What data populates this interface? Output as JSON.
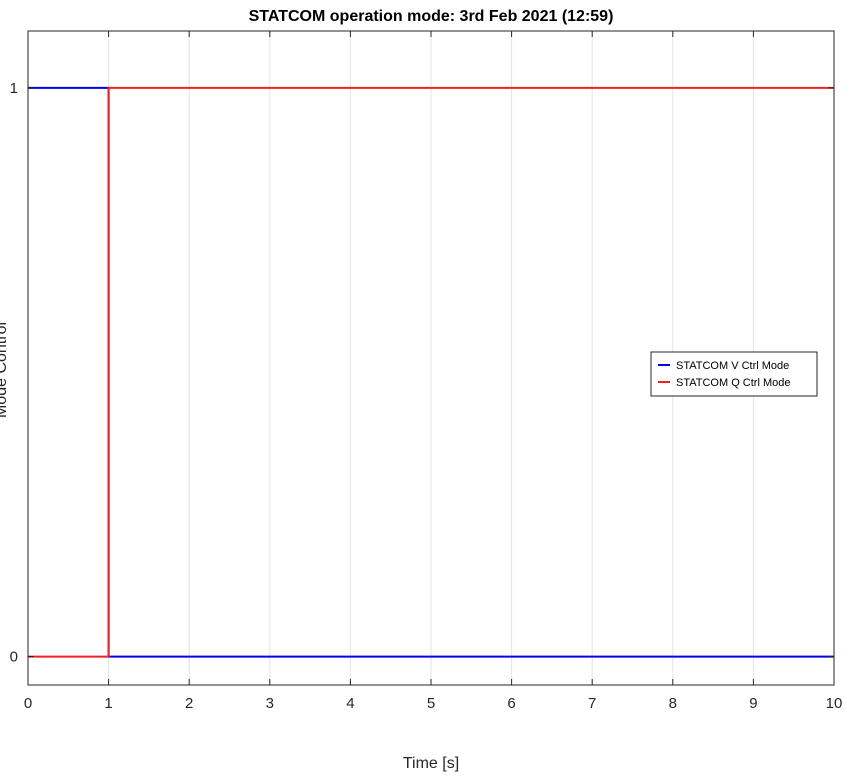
{
  "chart_data": {
    "type": "line",
    "title": "STATCOM operation mode: 3rd Feb 2021 (12:59)",
    "xlabel": "Time [s]",
    "ylabel": "Mode Control",
    "xlim": [
      0,
      10
    ],
    "ylim": [
      -0.05,
      1.1
    ],
    "xticks": [
      0,
      1,
      2,
      3,
      4,
      5,
      6,
      7,
      8,
      9,
      10
    ],
    "xtick_labels": [
      "0",
      "1",
      "2",
      "3",
      "4",
      "5",
      "6",
      "7",
      "8",
      "9",
      "10"
    ],
    "yticks": [
      0,
      1
    ],
    "ytick_labels": [
      "0",
      "1"
    ],
    "grid": "vertical",
    "legend_position": "right",
    "series": [
      {
        "name": "STATCOM V Ctrl Mode",
        "color": "#0000ee",
        "points": [
          [
            0,
            1
          ],
          [
            1,
            1
          ],
          [
            1,
            0
          ],
          [
            10,
            0
          ]
        ]
      },
      {
        "name": "STATCOM Q Ctrl Mode",
        "color": "#ee2222",
        "points": [
          [
            0,
            0
          ],
          [
            1,
            0
          ],
          [
            1,
            1
          ],
          [
            10,
            1
          ]
        ]
      }
    ]
  }
}
